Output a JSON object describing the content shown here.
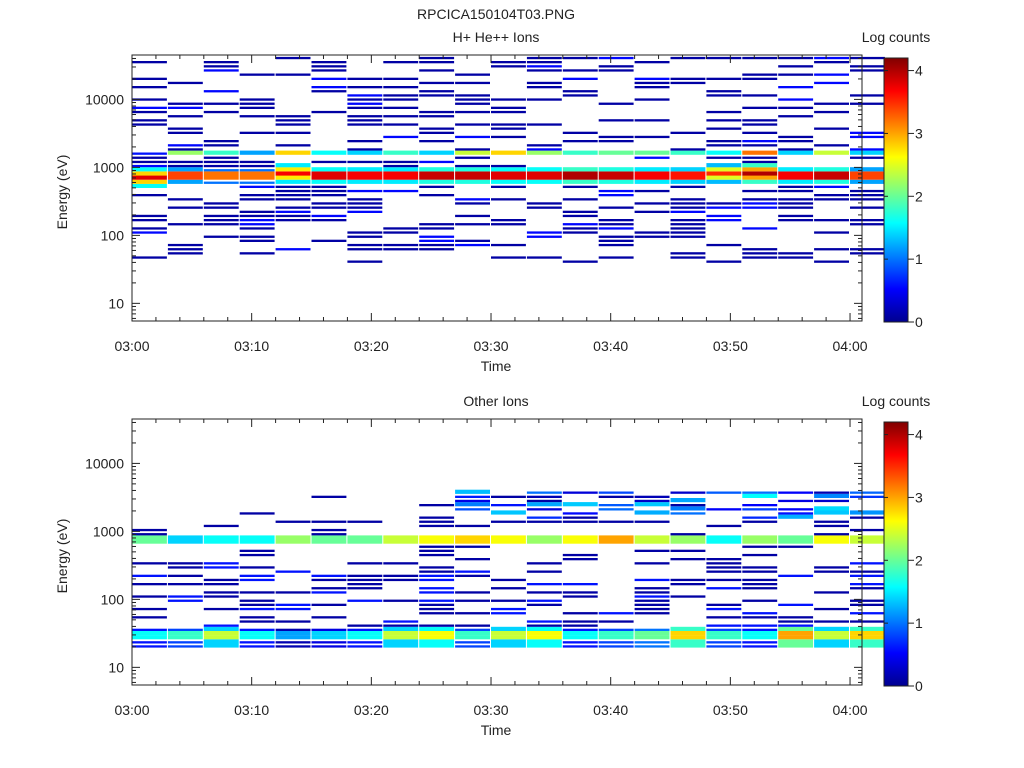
{
  "figure_title": "RPCICA150104T03.PNG",
  "chart_data": [
    {
      "type": "heatmap",
      "title": "H+ He++ Ions",
      "xlabel": "Time",
      "ylabel": "Energy (eV)",
      "colorbar_label": "Log counts",
      "x_ticks": [
        "03:00",
        "03:10",
        "03:20",
        "03:30",
        "03:40",
        "03:50",
        "04:00"
      ],
      "x_range": [
        "03:00",
        "04:01"
      ],
      "y_scale": "log",
      "y_range": [
        5.5,
        45000
      ],
      "y_ticks": [
        10,
        100,
        1000,
        10000
      ],
      "y_tick_labels": [
        "10",
        "100",
        "1000",
        "10000"
      ],
      "colorbar_range": [
        0,
        4.2
      ],
      "colorbar_ticks": [
        "0",
        "1",
        "2",
        "3",
        "4"
      ],
      "time_columns": [
        "03:00",
        "03:03",
        "03:06",
        "03:09",
        "03:12",
        "03:15",
        "03:18",
        "03:21",
        "03:24",
        "03:27",
        "03:30",
        "03:33",
        "03:36",
        "03:39",
        "03:42",
        "03:45",
        "03:48",
        "03:51",
        "03:54",
        "03:57",
        "04:00"
      ],
      "peak_energy_ev": [
        700,
        760,
        760,
        760,
        800,
        760,
        760,
        760,
        760,
        760,
        760,
        760,
        760,
        760,
        760,
        760,
        800,
        800,
        760,
        760,
        760
      ],
      "peak_log_counts": [
        3.8,
        3.4,
        3.2,
        3.2,
        3.7,
        3.8,
        3.7,
        3.7,
        3.9,
        3.9,
        3.8,
        3.8,
        4.0,
        3.9,
        3.7,
        3.6,
        3.5,
        4.0,
        3.7,
        3.9,
        3.4
      ],
      "secondary_band_ev": 1600,
      "secondary_band_log_counts": [
        0.6,
        2.2,
        1.8,
        1.2,
        2.8,
        1.6,
        1.4,
        1.8,
        1.4,
        2.4,
        2.8,
        2.2,
        1.8,
        2.0,
        2.0,
        1.8,
        1.6,
        3.2,
        1.4,
        2.4,
        1.4
      ],
      "grid": false
    },
    {
      "type": "heatmap",
      "title": "Other Ions",
      "xlabel": "Time",
      "ylabel": "Energy (eV)",
      "colorbar_label": "Log counts",
      "x_ticks": [
        "03:00",
        "03:10",
        "03:20",
        "03:30",
        "03:40",
        "03:50",
        "04:00"
      ],
      "x_range": [
        "03:00",
        "04:01"
      ],
      "y_scale": "log",
      "y_range": [
        5.5,
        45000
      ],
      "y_ticks": [
        10,
        100,
        1000,
        10000
      ],
      "y_tick_labels": [
        "10",
        "100",
        "1000",
        "10000"
      ],
      "colorbar_range": [
        0,
        4.2
      ],
      "colorbar_ticks": [
        "0",
        "1",
        "2",
        "3",
        "4"
      ],
      "time_columns": [
        "03:00",
        "03:03",
        "03:06",
        "03:09",
        "03:12",
        "03:15",
        "03:18",
        "03:21",
        "03:24",
        "03:27",
        "03:30",
        "03:33",
        "03:36",
        "03:39",
        "03:42",
        "03:45",
        "03:48",
        "03:51",
        "03:54",
        "03:57",
        "04:00"
      ],
      "band_700ev_log_counts": [
        2.0,
        1.4,
        1.6,
        1.6,
        2.2,
        2.0,
        2.0,
        2.4,
        2.6,
        2.8,
        2.6,
        2.2,
        2.6,
        3.0,
        2.4,
        2.2,
        1.6,
        2.2,
        2.0,
        2.6,
        2.4
      ],
      "low_energy_band_ev": 28,
      "low_energy_band_log_counts": [
        1.6,
        1.8,
        2.4,
        1.6,
        1.2,
        1.4,
        1.6,
        2.4,
        2.6,
        1.8,
        2.4,
        2.6,
        1.6,
        1.8,
        2.0,
        2.8,
        1.8,
        1.6,
        3.0,
        2.4,
        2.8
      ],
      "grid": false
    }
  ]
}
